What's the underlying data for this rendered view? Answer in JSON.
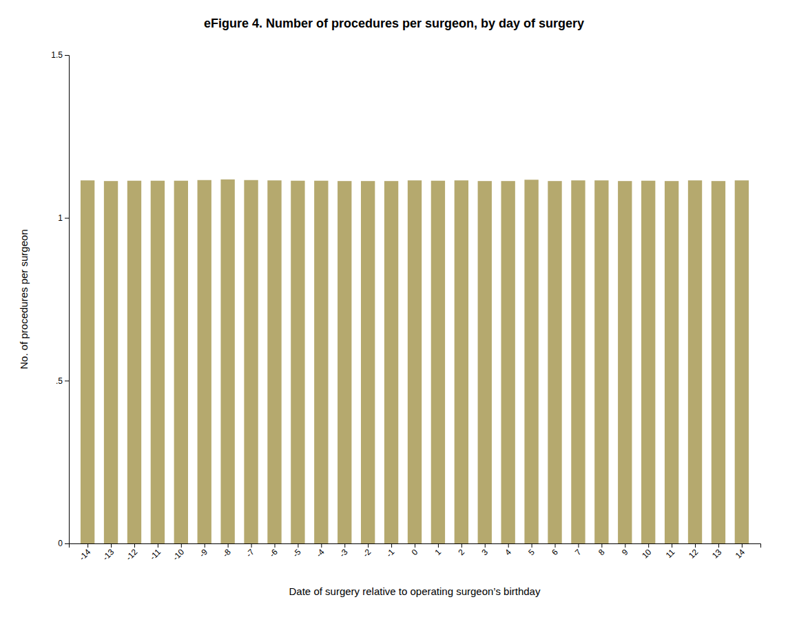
{
  "chart_data": {
    "type": "bar",
    "title": "eFigure 4. Number of procedures per surgeon, by day of surgery",
    "x_label": "Date of surgery relative to operating surgeon’s birthday",
    "y_label": "No. of procedures per surgeon",
    "x": [
      -14,
      -13,
      -12,
      -11,
      -10,
      -9,
      -8,
      -7,
      -6,
      -5,
      -4,
      -3,
      -2,
      -1,
      0,
      1,
      2,
      3,
      4,
      5,
      6,
      7,
      8,
      9,
      10,
      11,
      12,
      13,
      14
    ],
    "values": [
      1.115,
      1.113,
      1.114,
      1.114,
      1.114,
      1.116,
      1.118,
      1.116,
      1.115,
      1.114,
      1.114,
      1.113,
      1.113,
      1.113,
      1.115,
      1.114,
      1.115,
      1.113,
      1.113,
      1.117,
      1.113,
      1.115,
      1.115,
      1.113,
      1.114,
      1.113,
      1.115,
      1.113,
      1.115
    ],
    "color": "#b5a96e",
    "xlim": [
      -14.8,
      14.8
    ],
    "xticks": [
      -14,
      -13,
      -12,
      -11,
      -10,
      -9,
      -8,
      -7,
      -6,
      -5,
      -4,
      -3,
      -2,
      -1,
      0,
      1,
      2,
      3,
      4,
      5,
      6,
      7,
      8,
      9,
      10,
      11,
      12,
      13,
      14
    ],
    "ylim": [
      0,
      1.5
    ],
    "yticks": [
      0,
      {
        "value": 0.5,
        "label": ".5"
      },
      1,
      1.5
    ],
    "grid": false
  }
}
